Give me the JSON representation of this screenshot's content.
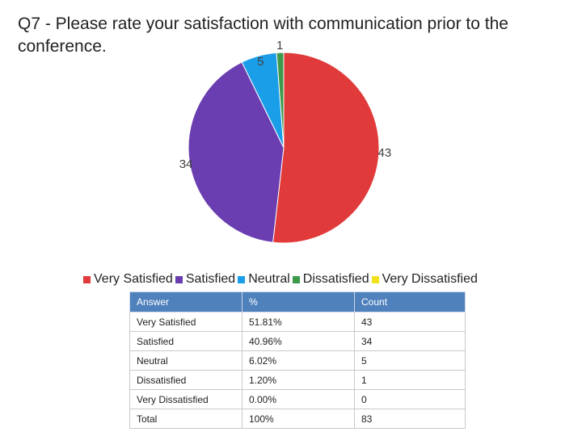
{
  "chart_data": {
    "type": "pie",
    "title": "Q7 - Please rate your satisfaction with communication prior to the conference.",
    "categories": [
      "Very Satisfied",
      "Satisfied",
      "Neutral",
      "Dissatisfied",
      "Very Dissatisfied"
    ],
    "values": [
      43,
      34,
      5,
      1,
      0
    ],
    "colors": [
      "#e03a3a",
      "#6a3db0",
      "#1b9ee8",
      "#3c9a4a",
      "#f2e21b"
    ],
    "data_labels": [
      "43",
      "34",
      "5",
      "1",
      ""
    ],
    "legend": {
      "placement": "bottom",
      "entries": [
        "Very Satisfied",
        "Satisfied",
        "Neutral",
        "Dissatisfied",
        "Very Dissatisfied"
      ]
    }
  },
  "table": {
    "headers": [
      "Answer",
      "%",
      "Count"
    ],
    "rows": [
      [
        "Very Satisfied",
        "51.81%",
        "43"
      ],
      [
        "Satisfied",
        "40.96%",
        "34"
      ],
      [
        "Neutral",
        "6.02%",
        "5"
      ],
      [
        "Dissatisfied",
        "1.20%",
        "1"
      ],
      [
        "Very Dissatisfied",
        "0.00%",
        "0"
      ],
      [
        "Total",
        "100%",
        "83"
      ]
    ]
  }
}
